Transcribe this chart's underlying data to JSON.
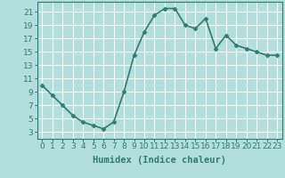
{
  "x": [
    0,
    1,
    2,
    3,
    4,
    5,
    6,
    7,
    8,
    9,
    10,
    11,
    12,
    13,
    14,
    15,
    16,
    17,
    18,
    19,
    20,
    21,
    22,
    23
  ],
  "y": [
    10,
    8.5,
    7,
    5.5,
    4.5,
    4,
    3.5,
    4.5,
    9,
    14.5,
    18,
    20.5,
    21.5,
    21.5,
    19,
    18.5,
    20,
    15.5,
    17.5,
    16,
    15.5,
    15,
    14.5,
    14.5
  ],
  "line_color": "#2e7d70",
  "marker": "D",
  "marker_size": 2.5,
  "bg_color": "#b2dfdb",
  "grid_color": "#ffffff",
  "xlabel": "Humidex (Indice chaleur)",
  "xlabel_fontsize": 7.5,
  "xlim": [
    -0.5,
    23.5
  ],
  "ylim": [
    2,
    22.5
  ],
  "xticks": [
    0,
    1,
    2,
    3,
    4,
    5,
    6,
    7,
    8,
    9,
    10,
    11,
    12,
    13,
    14,
    15,
    16,
    17,
    18,
    19,
    20,
    21,
    22,
    23
  ],
  "yticks": [
    3,
    5,
    7,
    9,
    11,
    13,
    15,
    17,
    19,
    21
  ],
  "tick_fontsize": 6.5,
  "linewidth": 1.2
}
